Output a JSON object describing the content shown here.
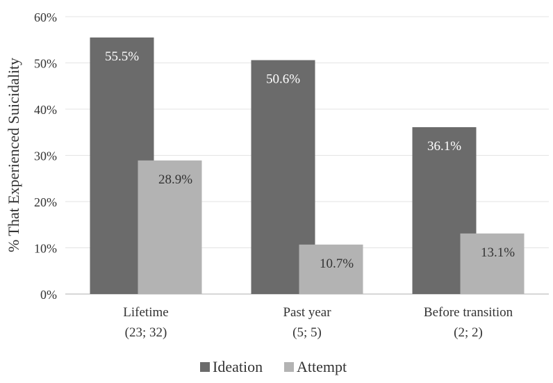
{
  "chart_data": {
    "type": "bar",
    "title": "",
    "xlabel": "",
    "ylabel": "% That Experienced Suicidality",
    "ylim": [
      0,
      60
    ],
    "yticks": [
      0,
      10,
      20,
      30,
      40,
      50,
      60
    ],
    "ytick_suffix": "%",
    "grid": true,
    "legend_position": "bottom",
    "categories": [
      {
        "label": "Lifetime",
        "sublabel": "(23; 32)"
      },
      {
        "label": "Past year",
        "sublabel": "(5; 5)"
      },
      {
        "label": "Before transition",
        "sublabel": "(2; 2)"
      }
    ],
    "series": [
      {
        "name": "Ideation",
        "color": "#6b6b6b",
        "values": [
          55.5,
          50.6,
          36.1
        ],
        "value_labels": [
          "55.5%",
          "50.6%",
          "36.1%"
        ],
        "label_color": "#ffffff"
      },
      {
        "name": "Attempt",
        "color": "#b3b3b3",
        "values": [
          28.9,
          10.7,
          13.1
        ],
        "value_labels": [
          "28.9%",
          "10.7%",
          "13.1%"
        ],
        "label_color": "#333333"
      }
    ]
  }
}
